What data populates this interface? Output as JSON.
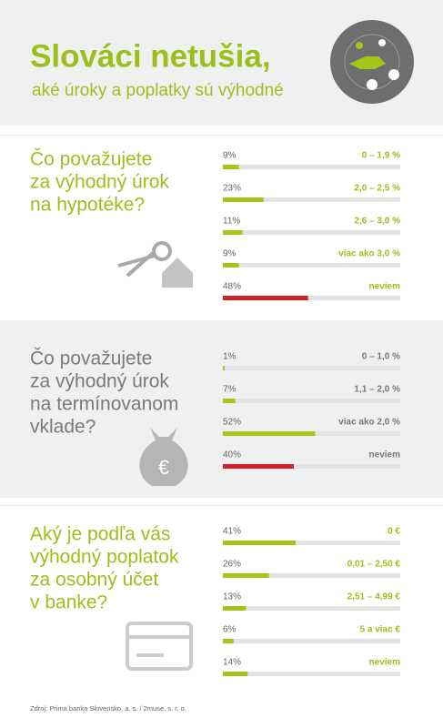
{
  "title": "Slováci netušia,",
  "subtitle": "aké úroky a poplatky sú výhodné",
  "source": "Zdroj: Prima banka Slovensko, a. s. / 2muse, s. r. o.",
  "chart_data": [
    {
      "type": "bar",
      "title": [
        "Čo považujete",
        "za výhodný úrok",
        "na hypotéke?"
      ],
      "title_color": "#9dbf1c",
      "categories": [
        "0 – 1,9 %",
        "2,0 – 2,5 %",
        "2,6 – 3,0 %",
        "viac ako 3,0 %",
        "neviem"
      ],
      "values": [
        9,
        23,
        11,
        9,
        48
      ],
      "value_labels": [
        "9%",
        "23%",
        "11%",
        "9%",
        "48%"
      ],
      "colors": [
        "#a3c617",
        "#a3c617",
        "#a3c617",
        "#a3c617",
        "#d0202a"
      ],
      "label_colors": [
        "#9dbf1c",
        "#9dbf1c",
        "#9dbf1c",
        "#9dbf1c",
        "#9dbf1c"
      ],
      "xlim": [
        0,
        100
      ]
    },
    {
      "type": "bar",
      "title": [
        "Čo považujete",
        "za výhodný úrok",
        "na termínovanom",
        "vklade?"
      ],
      "title_color": "#7a7a7a",
      "categories": [
        "0 – 1,0 %",
        "1,1 – 2,0 %",
        "viac ako 2,0 %",
        "neviem"
      ],
      "values": [
        1,
        7,
        52,
        40
      ],
      "value_labels": [
        "1%",
        "7%",
        "52%",
        "40%"
      ],
      "colors": [
        "#a3c617",
        "#a3c617",
        "#a3c617",
        "#d0202a"
      ],
      "label_colors": [
        "#777777",
        "#777777",
        "#777777",
        "#777777"
      ],
      "xlim": [
        0,
        100
      ]
    },
    {
      "type": "bar",
      "title": [
        "Aký je podľa vás",
        "výhodný poplatok",
        "za osobný účet",
        "v banke?"
      ],
      "title_color": "#9dbf1c",
      "categories": [
        "0 €",
        "0,01 – 2,50 €",
        "2,51 – 4,99 €",
        "5 a viac €",
        "neviem"
      ],
      "values": [
        41,
        26,
        13,
        6,
        14
      ],
      "value_labels": [
        "41%",
        "26%",
        "13%",
        "6%",
        "14%"
      ],
      "colors": [
        "#a3c617",
        "#a3c617",
        "#a3c617",
        "#a3c617",
        "#a3c617"
      ],
      "label_colors": [
        "#9dbf1c",
        "#9dbf1c",
        "#9dbf1c",
        "#9dbf1c",
        "#9dbf1c"
      ],
      "xlim": [
        0,
        100
      ]
    }
  ]
}
